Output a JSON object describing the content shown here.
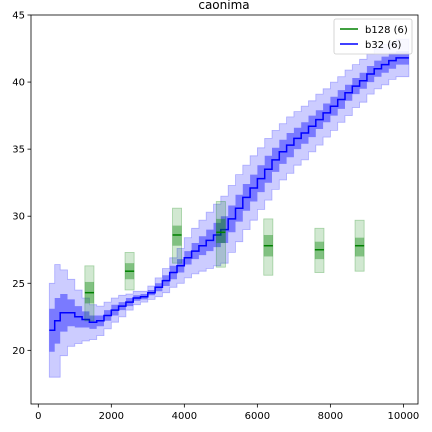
{
  "chart_data": {
    "type": "line",
    "title": "caonima",
    "xlabel": "",
    "ylabel": "",
    "xlim": [
      -200,
      10400
    ],
    "ylim": [
      16,
      45
    ],
    "xticks": [
      0,
      2000,
      4000,
      6000,
      8000,
      10000
    ],
    "yticks": [
      20,
      25,
      30,
      35,
      40,
      45
    ],
    "grid": false,
    "legend_position": "top-right",
    "series": [
      {
        "name": "b32 (6)",
        "color": "#0000ff",
        "kind": "step-line-with-bands",
        "x": [
          300,
          450,
          600,
          800,
          1000,
          1200,
          1400,
          1600,
          1800,
          2000,
          2200,
          2400,
          2600,
          2800,
          3000,
          3200,
          3400,
          3600,
          3800,
          4000,
          4200,
          4400,
          4600,
          4800,
          5000,
          5200,
          5400,
          5600,
          5800,
          6000,
          6200,
          6400,
          6600,
          6800,
          7000,
          7200,
          7400,
          7600,
          7800,
          8000,
          8200,
          8400,
          8600,
          8800,
          9000,
          9200,
          9400,
          9600,
          9800,
          10000
        ],
        "y": [
          21.5,
          22.2,
          22.8,
          22.8,
          22.5,
          22.3,
          22.1,
          22.2,
          22.6,
          23.0,
          23.3,
          23.6,
          23.9,
          24.0,
          24.3,
          24.7,
          25.2,
          25.8,
          26.3,
          26.9,
          27.4,
          27.8,
          28.2,
          28.6,
          29.0,
          29.8,
          30.6,
          31.4,
          32.1,
          32.8,
          33.5,
          34.2,
          34.8,
          35.3,
          35.8,
          36.2,
          36.7,
          37.2,
          37.7,
          38.2,
          38.7,
          39.2,
          39.7,
          40.1,
          40.6,
          41.0,
          41.3,
          41.6,
          41.8,
          41.8
        ],
        "inner_band": [
          1.6,
          1.7,
          1.4,
          1.0,
          0.8,
          0.6,
          0.5,
          0.4,
          0.4,
          0.4,
          0.3,
          0.3,
          0.2,
          0.2,
          0.2,
          0.3,
          0.4,
          0.5,
          0.5,
          0.5,
          0.6,
          0.7,
          0.8,
          0.9,
          1.0,
          1.0,
          1.0,
          1.0,
          1.0,
          1.0,
          1.0,
          0.9,
          0.9,
          0.9,
          0.8,
          0.8,
          0.8,
          0.7,
          0.7,
          0.7,
          0.7,
          0.6,
          0.6,
          0.6,
          0.6,
          0.6,
          0.6,
          0.6,
          0.5,
          0.5
        ],
        "outer_band": [
          3.5,
          4.2,
          3.2,
          2.5,
          2.0,
          1.6,
          1.3,
          1.1,
          1.0,
          0.9,
          0.8,
          0.6,
          0.5,
          0.4,
          0.5,
          0.7,
          0.9,
          1.1,
          1.3,
          1.5,
          1.7,
          1.9,
          2.1,
          2.3,
          2.5,
          2.5,
          2.5,
          2.4,
          2.4,
          2.3,
          2.3,
          2.2,
          2.1,
          2.1,
          2.0,
          2.0,
          1.9,
          1.9,
          1.8,
          1.8,
          1.7,
          1.7,
          1.6,
          1.6,
          1.5,
          1.5,
          1.5,
          1.4,
          1.4,
          1.4
        ]
      },
      {
        "name": "b128 (6)",
        "color": "#008000",
        "kind": "box-markers",
        "points": [
          {
            "x": 1400,
            "y": 24.3,
            "inner": [
              23.5,
              25.1
            ],
            "outer": [
              22.2,
              26.3
            ]
          },
          {
            "x": 2500,
            "y": 25.9,
            "inner": [
              25.3,
              26.5
            ],
            "outer": [
              24.5,
              27.3
            ]
          },
          {
            "x": 3800,
            "y": 28.6,
            "inner": [
              27.8,
              29.3
            ],
            "outer": [
              26.5,
              30.6
            ]
          },
          {
            "x": 5000,
            "y": 28.8,
            "inner": [
              28.0,
              29.8
            ],
            "outer": [
              26.2,
              31.1
            ]
          },
          {
            "x": 6300,
            "y": 27.8,
            "inner": [
              27.0,
              28.6
            ],
            "outer": [
              25.6,
              29.8
            ]
          },
          {
            "x": 7700,
            "y": 27.5,
            "inner": [
              26.8,
              28.1
            ],
            "outer": [
              25.8,
              29.1
            ]
          },
          {
            "x": 8800,
            "y": 27.8,
            "inner": [
              27.0,
              28.4
            ],
            "outer": [
              25.9,
              29.7
            ]
          }
        ]
      }
    ]
  }
}
